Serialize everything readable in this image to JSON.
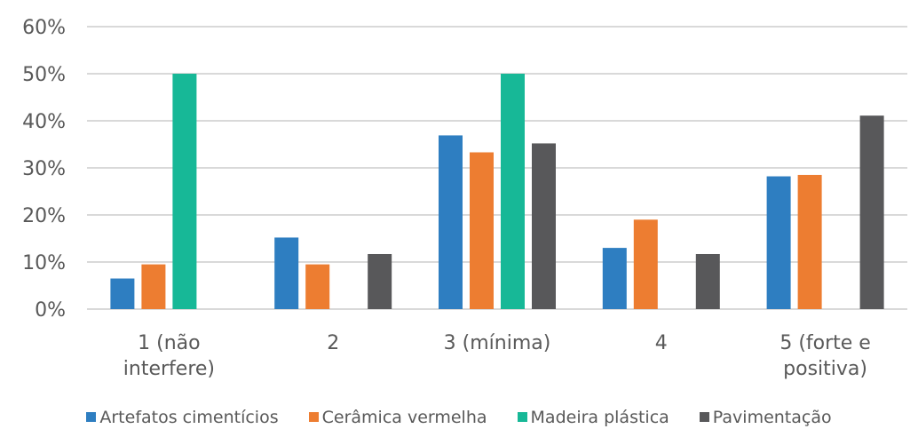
{
  "chart_data": {
    "type": "bar",
    "categories": [
      [
        "1 (não",
        "interfere)"
      ],
      [
        "2"
      ],
      [
        "3 (mínima)"
      ],
      [
        "4"
      ],
      [
        "5 (forte e",
        "positiva)"
      ]
    ],
    "ylim": [
      0,
      60
    ],
    "yticks": [
      "0%",
      "10%",
      "20%",
      "30%",
      "40%",
      "50%",
      "60%"
    ],
    "grid": true,
    "legend_position": "bottom",
    "series": [
      {
        "name": "Artefatos cimentícios",
        "color": "#2E7EC1",
        "values": [
          6.5,
          15.2,
          36.9,
          13.0,
          28.2
        ]
      },
      {
        "name": "Cerâmica vermelha",
        "color": "#ED7D31",
        "values": [
          9.5,
          9.5,
          33.3,
          19.0,
          28.5
        ]
      },
      {
        "name": "Madeira plástica",
        "color": "#17B897",
        "values": [
          50,
          0,
          50,
          0,
          0
        ]
      },
      {
        "name": "Pavimentação",
        "color": "#58585A",
        "values": [
          0,
          11.7,
          35.2,
          11.7,
          41.1
        ]
      }
    ]
  }
}
